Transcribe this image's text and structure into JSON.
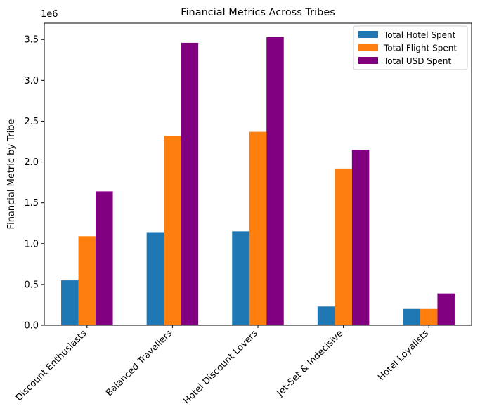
{
  "chart_data": {
    "type": "bar",
    "title": "Financial Metrics Across Tribes",
    "xlabel": "",
    "ylabel": "Financial Metric by Tribe",
    "y_offset_label": "1e6",
    "ylim": [
      0,
      3.7
    ],
    "yticks": [
      0.0,
      0.5,
      1.0,
      1.5,
      2.0,
      2.5,
      3.0,
      3.5
    ],
    "ytick_labels": [
      "0.0",
      "0.5",
      "1.0",
      "1.5",
      "2.0",
      "2.5",
      "3.0",
      "3.5"
    ],
    "categories": [
      "Discount Enthusiasts",
      "Balanced Travellers",
      "Hotel Discount Lovers",
      "Jet-Set & Indecisive",
      "Hotel Loyalists"
    ],
    "series": [
      {
        "name": "Total Hotel Spent",
        "color": "#1f77b4",
        "values": [
          0.55,
          1.14,
          1.15,
          0.23,
          0.2
        ]
      },
      {
        "name": "Total Flight Spent",
        "color": "#ff7f0e",
        "values": [
          1.09,
          2.32,
          2.37,
          1.92,
          0.2
        ]
      },
      {
        "name": "Total USD Spent",
        "color": "#800080",
        "values": [
          1.64,
          3.46,
          3.53,
          2.15,
          0.39
        ]
      }
    ],
    "legend_position": "top-right",
    "grid": false
  }
}
